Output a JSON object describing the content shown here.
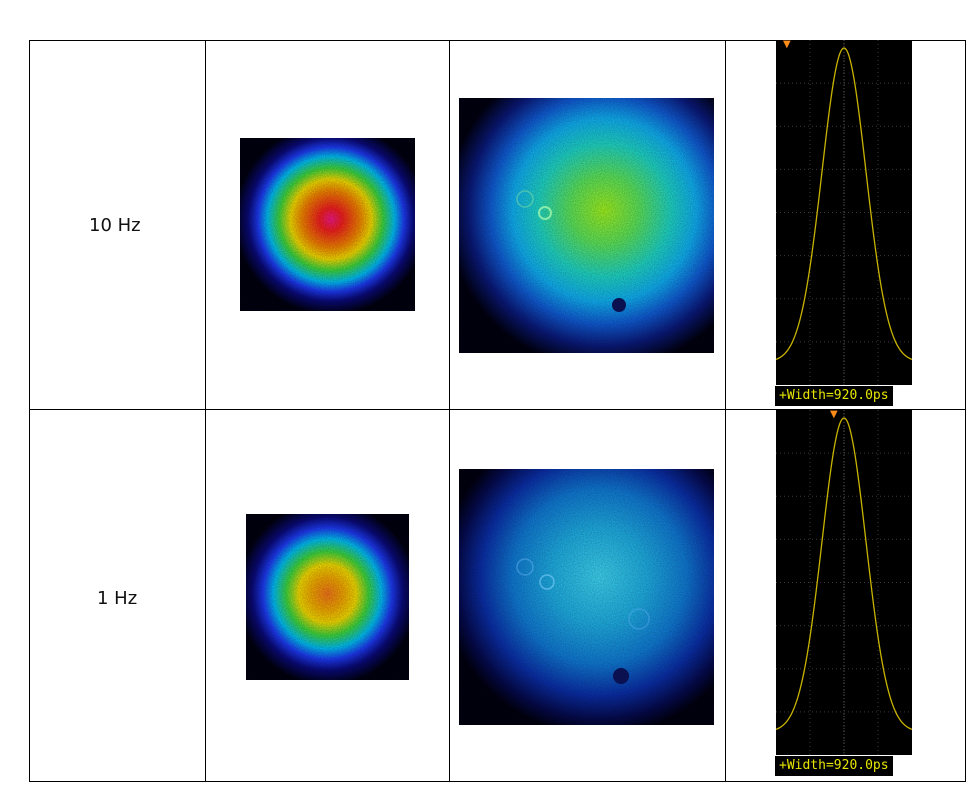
{
  "rows": [
    {
      "frequency": "10 Hz",
      "near_field_icon": "gaussian-beam-profile-hot-colormap",
      "far_field_icon": "speckled-beam-profile-green-blue",
      "scope_readout": "+Width=920.0ps",
      "trigger_icon": "trigger-marker-icon"
    },
    {
      "frequency": "1 Hz",
      "near_field_icon": "gaussian-beam-profile-hot-colormap",
      "far_field_icon": "speckled-beam-profile-blue",
      "scope_readout": "+Width=920.0ps",
      "trigger_icon": "trigger-marker-icon"
    }
  ],
  "colors": {
    "scope_trace": "#c8b400",
    "scope_text": "#e6e600",
    "scope_background": "#000000",
    "trigger_marker": "#ff8c1a"
  }
}
